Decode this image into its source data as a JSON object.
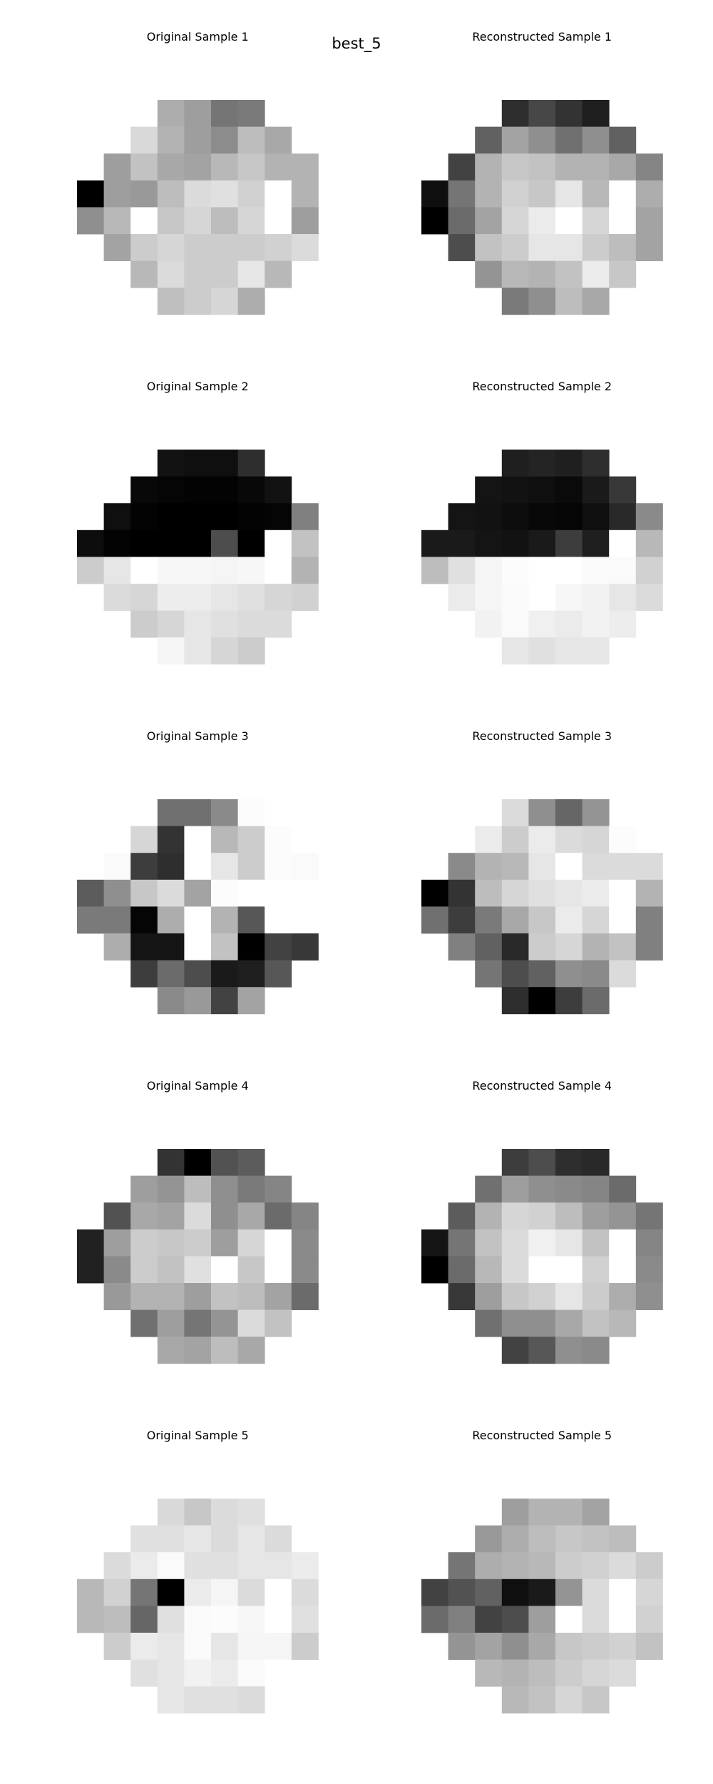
{
  "figure": {
    "title": "best_5"
  },
  "chart_data": {
    "type": "heatmap",
    "colormap": "gray",
    "value_range": [
      0,
      1
    ],
    "grid_size": [
      9,
      9
    ],
    "mask_note": "circular pixel footprint; null = masked (white background)",
    "samples": [
      {
        "original_title": "Original Sample 1",
        "reconstructed_title": "Reconstructed Sample 1",
        "original": [
          [
            null,
            null,
            null,
            0.68,
            0.62,
            0.46,
            0.48,
            null,
            null
          ],
          [
            null,
            null,
            0.85,
            0.7,
            0.62,
            0.55,
            0.74,
            0.66,
            null
          ],
          [
            null,
            0.62,
            0.76,
            0.66,
            0.64,
            0.72,
            0.78,
            0.7,
            0.7
          ],
          [
            0.0,
            0.62,
            0.6,
            0.74,
            0.86,
            0.88,
            0.82,
            1.0,
            0.7
          ],
          [
            0.56,
            0.72,
            1.0,
            0.78,
            0.84,
            0.74,
            0.84,
            1.0,
            0.62
          ],
          [
            null,
            0.64,
            0.8,
            0.84,
            0.8,
            0.8,
            0.8,
            0.82,
            0.86
          ],
          [
            null,
            null,
            0.72,
            0.86,
            0.8,
            0.8,
            0.9,
            0.72,
            null
          ],
          [
            null,
            null,
            null,
            0.75,
            0.8,
            0.84,
            0.68,
            null,
            null
          ],
          [
            null,
            null,
            null,
            null,
            null,
            null,
            null,
            null,
            null
          ]
        ],
        "reconstructed": [
          [
            null,
            null,
            null,
            0.18,
            0.28,
            0.2,
            0.12,
            null,
            null
          ],
          [
            null,
            null,
            0.38,
            0.64,
            0.56,
            0.44,
            0.56,
            0.38,
            null
          ],
          [
            null,
            0.26,
            0.7,
            0.78,
            0.76,
            0.7,
            0.7,
            0.66,
            0.52
          ],
          [
            0.06,
            0.46,
            0.7,
            0.82,
            0.78,
            0.9,
            0.72,
            1.0,
            0.68
          ],
          [
            0.0,
            0.42,
            0.64,
            0.84,
            0.92,
            1.0,
            0.84,
            1.0,
            0.64
          ],
          [
            null,
            0.3,
            0.76,
            0.8,
            0.9,
            0.9,
            0.8,
            0.74,
            0.64
          ],
          [
            null,
            null,
            0.58,
            0.72,
            0.7,
            0.76,
            0.92,
            0.78,
            null
          ],
          [
            null,
            null,
            null,
            0.48,
            0.56,
            0.74,
            0.66,
            null,
            null
          ],
          [
            null,
            null,
            null,
            null,
            null,
            null,
            null,
            null,
            null
          ]
        ]
      },
      {
        "original_title": "Original Sample 2",
        "reconstructed_title": "Reconstructed Sample 2",
        "original": [
          [
            null,
            null,
            null,
            0.07,
            0.06,
            0.06,
            0.18,
            null,
            null
          ],
          [
            null,
            null,
            0.03,
            0.02,
            0.01,
            0.01,
            0.03,
            0.07,
            null
          ],
          [
            null,
            0.06,
            0.01,
            0.0,
            0.0,
            0.0,
            0.01,
            0.02,
            0.5
          ],
          [
            0.05,
            0.01,
            0.0,
            0.0,
            0.0,
            0.3,
            0.0,
            1.0,
            0.76
          ],
          [
            0.8,
            0.9,
            1.0,
            0.97,
            0.97,
            0.96,
            0.97,
            1.0,
            0.7
          ],
          [
            null,
            0.86,
            0.84,
            0.93,
            0.93,
            0.9,
            0.88,
            0.84,
            0.82
          ],
          [
            null,
            null,
            0.8,
            0.84,
            0.9,
            0.88,
            0.86,
            0.86,
            null
          ],
          [
            null,
            null,
            null,
            0.96,
            0.9,
            0.84,
            0.8,
            null,
            null
          ],
          [
            null,
            null,
            null,
            null,
            null,
            null,
            null,
            null,
            null
          ]
        ],
        "reconstructed": [
          [
            null,
            null,
            null,
            0.12,
            0.14,
            0.12,
            0.18,
            null,
            null
          ],
          [
            null,
            null,
            0.08,
            0.07,
            0.06,
            0.04,
            0.1,
            0.22,
            null
          ],
          [
            null,
            0.08,
            0.07,
            0.05,
            0.03,
            0.02,
            0.06,
            0.16,
            0.54
          ],
          [
            0.1,
            0.1,
            0.08,
            0.07,
            0.1,
            0.24,
            0.12,
            1.0,
            0.72
          ],
          [
            0.74,
            0.88,
            0.96,
            0.99,
            1.0,
            1.0,
            0.98,
            0.98,
            0.82
          ],
          [
            null,
            0.92,
            0.96,
            0.98,
            1.0,
            0.97,
            0.95,
            0.9,
            0.86
          ],
          [
            null,
            null,
            0.95,
            0.98,
            0.94,
            0.92,
            0.95,
            0.93,
            null
          ],
          [
            null,
            null,
            null,
            0.9,
            0.88,
            0.9,
            0.9,
            null,
            null
          ],
          [
            null,
            null,
            null,
            null,
            null,
            null,
            null,
            null,
            null
          ]
        ]
      },
      {
        "original_title": "Original Sample 3",
        "reconstructed_title": "Reconstructed Sample 3",
        "original": [
          [
            null,
            null,
            null,
            0.44,
            0.44,
            0.54,
            0.99,
            null,
            null
          ],
          [
            null,
            null,
            0.84,
            0.2,
            1.0,
            0.72,
            0.8,
            0.99,
            null
          ],
          [
            null,
            0.98,
            0.24,
            0.18,
            1.0,
            0.9,
            0.8,
            0.99,
            0.98
          ],
          [
            0.36,
            0.56,
            0.78,
            0.86,
            0.64,
            0.99,
            1.0,
            1.0,
            1.0
          ],
          [
            0.48,
            0.48,
            0.02,
            0.68,
            1.0,
            0.7,
            0.34,
            1.0,
            1.0
          ],
          [
            null,
            0.68,
            0.08,
            0.08,
            1.0,
            0.76,
            0.0,
            0.26,
            0.22
          ],
          [
            null,
            null,
            0.24,
            0.42,
            0.3,
            0.1,
            0.12,
            0.34,
            null
          ],
          [
            null,
            null,
            null,
            0.54,
            0.6,
            0.26,
            0.64,
            null,
            null
          ],
          [
            null,
            null,
            null,
            null,
            null,
            null,
            null,
            null,
            null
          ]
        ],
        "reconstructed": [
          [
            null,
            null,
            null,
            0.86,
            0.56,
            0.4,
            0.58,
            null,
            null
          ],
          [
            null,
            null,
            0.92,
            0.8,
            0.92,
            0.86,
            0.84,
            0.99,
            null
          ],
          [
            null,
            0.54,
            0.7,
            0.72,
            0.9,
            1.0,
            0.86,
            0.86,
            0.86
          ],
          [
            0.0,
            0.2,
            0.74,
            0.84,
            0.88,
            0.9,
            0.92,
            1.0,
            0.7
          ],
          [
            0.44,
            0.24,
            0.48,
            0.66,
            0.78,
            0.92,
            0.84,
            1.0,
            0.5
          ],
          [
            null,
            0.5,
            0.38,
            0.16,
            0.8,
            0.84,
            0.7,
            0.76,
            0.5
          ],
          [
            null,
            null,
            0.46,
            0.3,
            0.38,
            0.56,
            0.54,
            0.86,
            null
          ],
          [
            null,
            null,
            null,
            0.18,
            0.0,
            0.24,
            0.42,
            null,
            null
          ],
          [
            null,
            null,
            null,
            null,
            null,
            null,
            null,
            null,
            null
          ]
        ]
      },
      {
        "original_title": "Original Sample 4",
        "reconstructed_title": "Reconstructed Sample 4",
        "original": [
          [
            null,
            null,
            null,
            0.2,
            0.0,
            0.32,
            0.36,
            null,
            null
          ],
          [
            null,
            null,
            0.62,
            0.58,
            0.74,
            0.56,
            0.48,
            0.52,
            null
          ],
          [
            null,
            0.32,
            0.66,
            0.64,
            0.86,
            0.56,
            0.66,
            0.42,
            0.52
          ],
          [
            0.13,
            0.62,
            0.8,
            0.78,
            0.8,
            0.62,
            0.84,
            1.0,
            0.54
          ],
          [
            0.13,
            0.54,
            0.8,
            0.76,
            0.88,
            1.0,
            0.78,
            1.0,
            0.54
          ],
          [
            null,
            0.6,
            0.7,
            0.7,
            0.62,
            0.76,
            0.74,
            0.64,
            0.42
          ],
          [
            null,
            null,
            0.44,
            0.62,
            0.46,
            0.58,
            0.86,
            0.76,
            null
          ],
          [
            null,
            null,
            null,
            0.66,
            0.64,
            0.74,
            0.66,
            null,
            null
          ],
          [
            null,
            null,
            null,
            null,
            null,
            null,
            null,
            null,
            null
          ]
        ],
        "reconstructed": [
          [
            null,
            null,
            null,
            0.24,
            0.3,
            0.18,
            0.16,
            null,
            null
          ],
          [
            null,
            null,
            0.44,
            0.62,
            0.56,
            0.54,
            0.52,
            0.42,
            null
          ],
          [
            null,
            0.36,
            0.7,
            0.84,
            0.82,
            0.74,
            0.62,
            0.58,
            0.46
          ],
          [
            0.08,
            0.46,
            0.76,
            0.86,
            0.94,
            0.9,
            0.76,
            1.0,
            0.52
          ],
          [
            0.0,
            0.42,
            0.72,
            0.86,
            1.0,
            1.0,
            0.82,
            1.0,
            0.54
          ],
          [
            null,
            0.22,
            0.62,
            0.78,
            0.82,
            0.9,
            0.8,
            0.68,
            0.56
          ],
          [
            null,
            null,
            0.44,
            0.56,
            0.56,
            0.66,
            0.76,
            0.72,
            null
          ],
          [
            null,
            null,
            null,
            0.26,
            0.34,
            0.56,
            0.54,
            null,
            null
          ],
          [
            null,
            null,
            null,
            null,
            null,
            null,
            null,
            null,
            null
          ]
        ]
      },
      {
        "original_title": "Original Sample 5",
        "reconstructed_title": "Reconstructed Sample 5",
        "original": [
          [
            null,
            null,
            null,
            0.85,
            0.78,
            0.86,
            0.88,
            null,
            null
          ],
          [
            null,
            null,
            0.88,
            0.88,
            0.9,
            0.86,
            0.9,
            0.86,
            null
          ],
          [
            null,
            0.86,
            0.92,
            0.98,
            0.88,
            0.88,
            0.9,
            0.9,
            0.92
          ],
          [
            0.72,
            0.82,
            0.46,
            0.0,
            0.92,
            0.96,
            0.86,
            1.0,
            0.86
          ],
          [
            0.72,
            0.74,
            0.4,
            0.88,
            0.98,
            0.99,
            0.97,
            1.0,
            0.88
          ],
          [
            null,
            0.8,
            0.92,
            0.9,
            0.98,
            0.9,
            0.96,
            0.96,
            0.8
          ],
          [
            null,
            null,
            0.88,
            0.9,
            0.95,
            0.92,
            0.98,
            1.0,
            null
          ],
          [
            null,
            null,
            null,
            0.9,
            0.88,
            0.88,
            0.86,
            null,
            null
          ],
          [
            null,
            null,
            null,
            null,
            null,
            null,
            null,
            null,
            null
          ]
        ],
        "reconstructed": [
          [
            null,
            null,
            null,
            0.62,
            0.7,
            0.7,
            0.64,
            null,
            null
          ],
          [
            null,
            null,
            0.6,
            0.68,
            0.74,
            0.78,
            0.76,
            0.74,
            null
          ],
          [
            null,
            0.46,
            0.68,
            0.7,
            0.72,
            0.8,
            0.82,
            0.86,
            0.8
          ],
          [
            0.26,
            0.32,
            0.38,
            0.06,
            0.1,
            0.58,
            0.86,
            1.0,
            0.84
          ],
          [
            0.42,
            0.5,
            0.26,
            0.3,
            0.62,
            1.0,
            0.86,
            1.0,
            0.82
          ],
          [
            null,
            0.58,
            0.64,
            0.56,
            0.66,
            0.78,
            0.8,
            0.82,
            0.76
          ],
          [
            null,
            null,
            0.72,
            0.7,
            0.74,
            0.8,
            0.84,
            0.86,
            null
          ],
          [
            null,
            null,
            null,
            0.72,
            0.76,
            0.84,
            0.78,
            null,
            null
          ],
          [
            null,
            null,
            null,
            null,
            null,
            null,
            null,
            null,
            null
          ]
        ]
      }
    ]
  }
}
